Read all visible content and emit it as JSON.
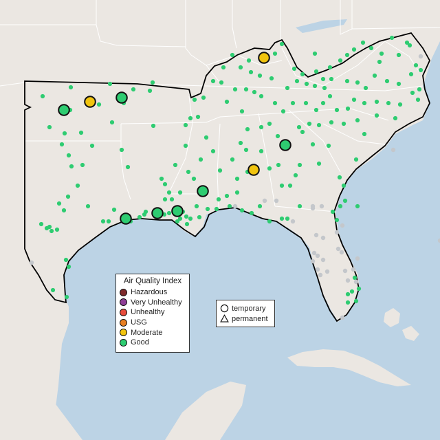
{
  "map": {
    "colors": {
      "water": "#bcd3e5",
      "land": "#ebe7e2",
      "boundary": "#ffffff",
      "region_outline": "#000000",
      "inactive_site": "#c4c7cb"
    },
    "aqi_colors": {
      "Hazardous": "#7e2b2b",
      "Very Unhealthy": "#8f3f97",
      "Unhealthy": "#e74c3c",
      "USG": "#e67e22",
      "Moderate": "#f1c40f",
      "Good": "#2ecc71"
    }
  },
  "legend_aqi": {
    "title": "Air Quality Index",
    "items": [
      {
        "label": "Hazardous",
        "icon": "circle",
        "color": "#7e2b2b"
      },
      {
        "label": "Very Unhealthy",
        "icon": "circle",
        "color": "#8f3f97"
      },
      {
        "label": "Unhealthy",
        "icon": "circle",
        "color": "#e74c3c"
      },
      {
        "label": "USG",
        "icon": "circle",
        "color": "#e67e22"
      },
      {
        "label": "Moderate",
        "icon": "circle",
        "color": "#f1c40f"
      },
      {
        "label": "Good",
        "icon": "circle",
        "color": "#2ecc71"
      }
    ]
  },
  "legend_type": {
    "items": [
      {
        "label": "temporary",
        "icon": "circle-outline-icon"
      },
      {
        "label": "permanent",
        "icon": "triangle-outline-icon"
      }
    ]
  }
}
